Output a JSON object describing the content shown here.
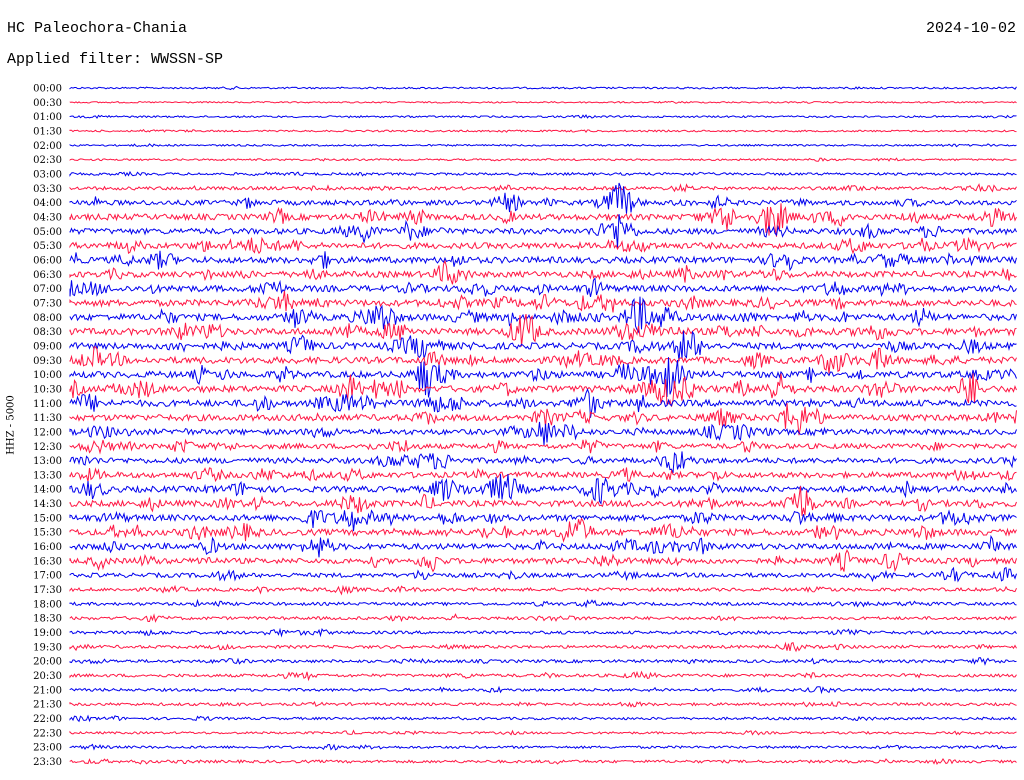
{
  "header": {
    "station": "HC Paleochora-Chania",
    "date": "2024-10-02",
    "filter_label": "Applied filter:",
    "filter_value": "WWSSN-SP"
  },
  "chart_data": {
    "type": "line",
    "title": "HC Paleochora-Chania",
    "ylabel": "HHZ - 5000",
    "colors": [
      "#0000ee",
      "#ff1744"
    ],
    "rows": [
      {
        "time": "00:00",
        "activity": 0.1
      },
      {
        "time": "00:30",
        "activity": 0.05
      },
      {
        "time": "01:00",
        "activity": 0.12
      },
      {
        "time": "01:30",
        "activity": 0.1
      },
      {
        "time": "02:00",
        "activity": 0.1
      },
      {
        "time": "02:30",
        "activity": 0.12
      },
      {
        "time": "03:00",
        "activity": 0.25
      },
      {
        "time": "03:30",
        "activity": 0.4
      },
      {
        "time": "04:00",
        "activity": 0.7
      },
      {
        "time": "04:30",
        "activity": 0.9
      },
      {
        "time": "05:00",
        "activity": 0.85
      },
      {
        "time": "05:30",
        "activity": 0.9
      },
      {
        "time": "06:00",
        "activity": 0.95
      },
      {
        "time": "06:30",
        "activity": 0.9
      },
      {
        "time": "07:00",
        "activity": 0.95
      },
      {
        "time": "07:30",
        "activity": 1.0
      },
      {
        "time": "08:00",
        "activity": 1.0
      },
      {
        "time": "08:30",
        "activity": 1.0
      },
      {
        "time": "09:00",
        "activity": 1.0
      },
      {
        "time": "09:30",
        "activity": 1.0
      },
      {
        "time": "10:00",
        "activity": 1.0
      },
      {
        "time": "10:30",
        "activity": 1.0
      },
      {
        "time": "11:00",
        "activity": 1.0
      },
      {
        "time": "11:30",
        "activity": 0.95
      },
      {
        "time": "12:00",
        "activity": 0.8
      },
      {
        "time": "12:30",
        "activity": 0.75
      },
      {
        "time": "13:00",
        "activity": 0.8
      },
      {
        "time": "13:30",
        "activity": 0.85
      },
      {
        "time": "14:00",
        "activity": 0.9
      },
      {
        "time": "14:30",
        "activity": 0.9
      },
      {
        "time": "15:00",
        "activity": 0.95
      },
      {
        "time": "15:30",
        "activity": 0.95
      },
      {
        "time": "16:00",
        "activity": 0.9
      },
      {
        "time": "16:30",
        "activity": 0.8
      },
      {
        "time": "17:00",
        "activity": 0.6
      },
      {
        "time": "17:30",
        "activity": 0.4
      },
      {
        "time": "18:00",
        "activity": 0.35
      },
      {
        "time": "18:30",
        "activity": 0.35
      },
      {
        "time": "19:00",
        "activity": 0.35
      },
      {
        "time": "19:30",
        "activity": 0.35
      },
      {
        "time": "20:00",
        "activity": 0.35
      },
      {
        "time": "20:30",
        "activity": 0.35
      },
      {
        "time": "21:00",
        "activity": 0.3
      },
      {
        "time": "21:30",
        "activity": 0.3
      },
      {
        "time": "22:00",
        "activity": 0.25
      },
      {
        "time": "22:30",
        "activity": 0.2
      },
      {
        "time": "23:00",
        "activity": 0.25
      },
      {
        "time": "23:30",
        "activity": 0.3
      }
    ],
    "events": [
      {
        "row": 8,
        "x": 0.58,
        "amp": 3.0
      },
      {
        "row": 10,
        "x": 0.58,
        "amp": 3.0
      },
      {
        "row": 9,
        "x": 0.69,
        "amp": 2.5
      },
      {
        "row": 9,
        "x": 0.74,
        "amp": 2.0
      },
      {
        "row": 16,
        "x": 0.33,
        "amp": 2.2
      },
      {
        "row": 17,
        "x": 0.48,
        "amp": 3.0
      },
      {
        "row": 16,
        "x": 0.6,
        "amp": 3.0
      },
      {
        "row": 20,
        "x": 0.38,
        "amp": 2.5
      },
      {
        "row": 20,
        "x": 0.63,
        "amp": 3.0
      },
      {
        "row": 21,
        "x": 0.63,
        "amp": 2.5
      },
      {
        "row": 21,
        "x": 0.95,
        "amp": 2.5
      },
      {
        "row": 23,
        "x": 0.77,
        "amp": 2.2
      },
      {
        "row": 24,
        "x": 0.5,
        "amp": 2.0
      },
      {
        "row": 28,
        "x": 0.46,
        "amp": 2.2
      },
      {
        "row": 28,
        "x": 0.56,
        "amp": 2.0
      },
      {
        "row": 29,
        "x": 0.77,
        "amp": 3.0
      },
      {
        "row": 31,
        "x": 0.53,
        "amp": 2.2
      },
      {
        "row": 33,
        "x": 0.38,
        "amp": 1.8
      }
    ]
  }
}
